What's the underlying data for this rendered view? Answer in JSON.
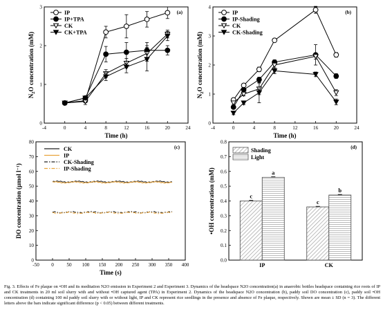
{
  "chart_data": [
    {
      "panel": "(a)",
      "type": "line",
      "xlabel": "Time (h)",
      "ylabel": "N2O concentration (mM)",
      "xlim": [
        -4,
        24
      ],
      "ylim": [
        0,
        3
      ],
      "xticks": [
        -4,
        0,
        4,
        8,
        12,
        16,
        20,
        24
      ],
      "yticks": [
        0,
        1,
        2,
        3
      ],
      "x": [
        0,
        4,
        8,
        12,
        16,
        20
      ],
      "legend_position": "top-left",
      "series": [
        {
          "name": "IP",
          "marker": "circle-open",
          "values": [
            0.52,
            0.58,
            2.35,
            2.5,
            2.68,
            2.85
          ],
          "errors": [
            0.05,
            0.05,
            0.15,
            0.3,
            0.2,
            0.15
          ]
        },
        {
          "name": "IP+TPA",
          "marker": "circle-filled",
          "values": [
            0.52,
            0.65,
            1.78,
            1.83,
            1.88,
            1.88
          ],
          "errors": [
            0.05,
            0.05,
            0.2,
            0.25,
            0.2,
            0.12
          ]
        },
        {
          "name": "CK",
          "marker": "triangle-down-open",
          "values": [
            0.52,
            0.56,
            1.28,
            1.55,
            1.8,
            2.3
          ],
          "errors": [
            0.04,
            0.08,
            0.1,
            0.12,
            0.2,
            0.1
          ]
        },
        {
          "name": "CK+TPA",
          "marker": "triangle-down-filled",
          "values": [
            0.52,
            0.65,
            1.2,
            1.45,
            1.65,
            2.25
          ],
          "errors": [
            0.04,
            0.05,
            0.1,
            0.15,
            0.3,
            0.12
          ]
        }
      ]
    },
    {
      "panel": "(b)",
      "type": "line",
      "xlabel": "Time (h)",
      "ylabel": "N2O concentration (mM)",
      "xlim": [
        -4,
        24
      ],
      "ylim": [
        0,
        4
      ],
      "xticks": [
        -4,
        0,
        4,
        8,
        12,
        16,
        20,
        24
      ],
      "yticks": [
        0,
        1,
        2,
        3,
        4
      ],
      "x": [
        0,
        2,
        5,
        8,
        16,
        20
      ],
      "legend_position": "top-left",
      "series": [
        {
          "name": "IP",
          "marker": "circle-open",
          "values": [
            0.8,
            1.3,
            1.85,
            2.85,
            3.9,
            2.35
          ],
          "errors": [
            0.06,
            0.06,
            0.08,
            0.06,
            0.12,
            0.08
          ]
        },
        {
          "name": "IP-Shading",
          "marker": "circle-filled",
          "values": [
            0.55,
            1.15,
            1.5,
            2.1,
            2.35,
            1.62
          ],
          "errors": [
            0.06,
            0.05,
            0.08,
            0.08,
            0.35,
            0.08
          ]
        },
        {
          "name": "CK",
          "marker": "triangle-down-open",
          "values": [
            0.7,
            1.0,
            1.18,
            2.0,
            2.3,
            1.05
          ],
          "errors": [
            0.06,
            0.06,
            0.2,
            0.1,
            0.1,
            0.1
          ]
        },
        {
          "name": "CK-Shading",
          "marker": "triangle-down-filled",
          "values": [
            0.35,
            0.7,
            1.05,
            1.8,
            1.68,
            0.73
          ],
          "errors": [
            0.06,
            0.06,
            0.35,
            0.1,
            0.08,
            0.1
          ]
        }
      ]
    },
    {
      "panel": "(c)",
      "type": "line",
      "xlabel": "Time (s)",
      "ylabel": "DO concentration (µmol l⁻¹)",
      "xlim": [
        -50,
        400
      ],
      "ylim": [
        0,
        80
      ],
      "xticks": [
        -50,
        0,
        50,
        100,
        150,
        200,
        250,
        300,
        350,
        400
      ],
      "yticks": [
        0,
        10,
        20,
        30,
        40,
        50,
        60,
        70,
        80
      ],
      "x_start": 0,
      "x_end": 360,
      "legend_position": "top-left",
      "series": [
        {
          "name": "CK",
          "style": "solid",
          "color": "#222222",
          "level": 53.0
        },
        {
          "name": "IP",
          "style": "solid",
          "color": "#e8a33a",
          "level": 52.6
        },
        {
          "name": "CK-Shading",
          "style": "dash-dot",
          "color": "#222222",
          "level": 32.4
        },
        {
          "name": "IP-Shading",
          "style": "dash-dot",
          "color": "#e8a33a",
          "level": 32.0
        }
      ]
    },
    {
      "panel": "(d)",
      "type": "bar",
      "xlabel": "",
      "ylabel": "•OH concentration (mM)",
      "ylim": [
        0,
        0.8
      ],
      "yticks": [
        0.0,
        0.1,
        0.2,
        0.3,
        0.4,
        0.5,
        0.6,
        0.7,
        0.8
      ],
      "categories": [
        "IP",
        "CK"
      ],
      "legend_position": "top-left",
      "series": [
        {
          "name": "Shading",
          "pattern": "diagonal",
          "values": [
            0.4,
            0.36
          ],
          "errors": [
            0.004,
            0.004
          ],
          "letters": [
            "c",
            "c"
          ]
        },
        {
          "name": "Light",
          "pattern": "horizontal",
          "values": [
            0.56,
            0.44
          ],
          "errors": [
            0.004,
            0.004
          ],
          "letters": [
            "a",
            "b"
          ]
        }
      ]
    }
  ],
  "caption": "Fig. 3. Effects of Fe plaque on •OH and its meditation N2O emission in Experiment 2 and Experiment 3. Dynamics of the headspace N2O concentration(a) in anaerobic bottles headspace containing rice roots of IP and CK treatments in 20 ml soil slurry with and without •OH captured agent (TPA) in Experiment 2. Dynamics of the headspace N2O concentration (b), paddy soil DO concentration (c), paddy soil •OH concentration (d) containing 100 ml paddy soil slurry with or without light, IP and CK represent rice seedlings in the presence and absence of Fe plaque, respectively. Shown are mean ± SD (n = 3). The different letters above the bars indicate significant difference (p < 0.05) between different treatments."
}
